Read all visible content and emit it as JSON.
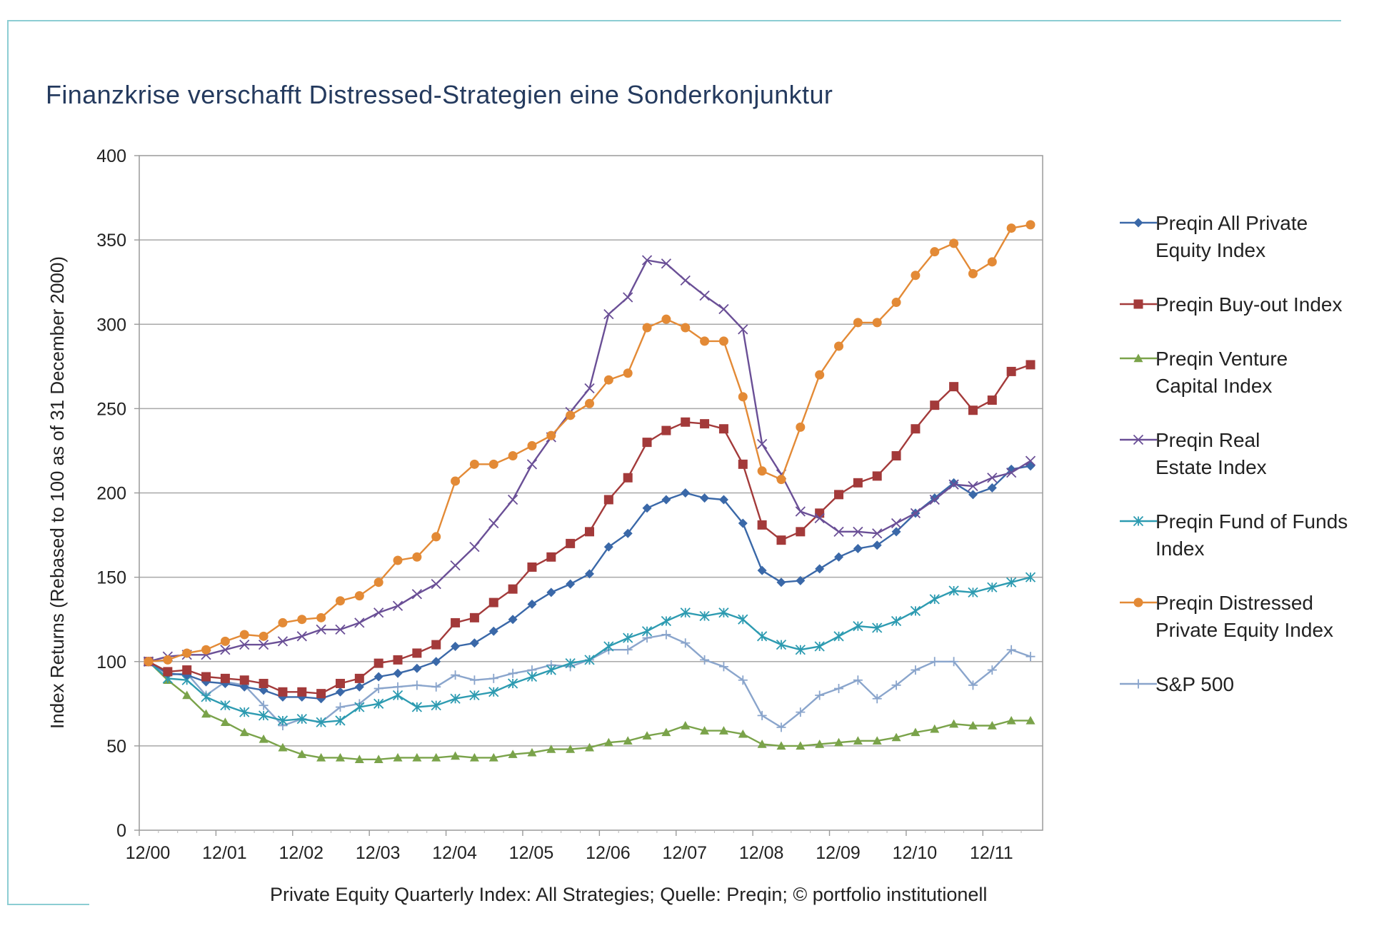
{
  "title": "Finanzkrise verschafft Distressed-Strategien eine Sonderkonjunktur",
  "source": "Private Equity Quarterly Index: All Strategies; Quelle: Preqin; © portfolio institutionell",
  "chart_data": {
    "type": "line",
    "ylabel": "Index Returns (Rebased to 100 as of 31 December 2000)",
    "xlabel": "",
    "ylim": [
      0,
      400
    ],
    "yticks": [
      0,
      50,
      100,
      150,
      200,
      250,
      300,
      350,
      400
    ],
    "grid": true,
    "legend_position": "right",
    "x_tick_labels": [
      "12/00",
      "12/01",
      "12/02",
      "12/03",
      "12/04",
      "12/05",
      "12/06",
      "12/07",
      "12/08",
      "12/09",
      "12/10",
      "12/11"
    ],
    "x": [
      "12/00",
      "03/01",
      "06/01",
      "09/01",
      "12/01",
      "03/02",
      "06/02",
      "09/02",
      "12/02",
      "03/03",
      "06/03",
      "09/03",
      "12/03",
      "03/04",
      "06/04",
      "09/04",
      "12/04",
      "03/05",
      "06/05",
      "09/05",
      "12/05",
      "03/06",
      "06/06",
      "09/06",
      "12/06",
      "03/07",
      "06/07",
      "09/07",
      "12/07",
      "03/08",
      "06/08",
      "09/08",
      "12/08",
      "03/09",
      "06/09",
      "09/09",
      "12/09",
      "03/10",
      "06/10",
      "09/10",
      "12/10",
      "03/11",
      "06/11",
      "09/11",
      "12/11",
      "03/12",
      "06/12"
    ],
    "series": [
      {
        "name": "Preqin All Private Equity Index",
        "color": "#3a68a8",
        "marker": "diamond",
        "values": [
          100,
          93,
          92,
          88,
          87,
          85,
          83,
          79,
          79,
          78,
          82,
          85,
          91,
          93,
          96,
          100,
          109,
          111,
          118,
          125,
          134,
          141,
          146,
          152,
          168,
          176,
          191,
          196,
          200,
          197,
          196,
          182,
          154,
          147,
          148,
          155,
          162,
          167,
          169,
          177,
          188,
          197,
          206,
          199,
          203,
          214,
          216
        ]
      },
      {
        "name": "Preqin Buy-out Index",
        "color": "#a33a3a",
        "marker": "square",
        "values": [
          100,
          94,
          95,
          91,
          90,
          89,
          87,
          82,
          82,
          81,
          87,
          90,
          99,
          101,
          105,
          110,
          123,
          126,
          135,
          143,
          156,
          162,
          170,
          177,
          196,
          209,
          230,
          237,
          242,
          241,
          238,
          217,
          181,
          172,
          177,
          188,
          199,
          206,
          210,
          222,
          238,
          252,
          263,
          249,
          255,
          272,
          276
        ]
      },
      {
        "name": "Preqin Venture Capital Index",
        "color": "#7aa34a",
        "marker": "triangle",
        "values": [
          100,
          89,
          80,
          69,
          64,
          58,
          54,
          49,
          45,
          43,
          43,
          42,
          42,
          43,
          43,
          43,
          44,
          43,
          43,
          45,
          46,
          48,
          48,
          49,
          52,
          53,
          56,
          58,
          62,
          59,
          59,
          57,
          51,
          50,
          50,
          51,
          52,
          53,
          53,
          55,
          58,
          60,
          63,
          62,
          62,
          65,
          65
        ]
      },
      {
        "name": "Preqin Real Estate Index",
        "color": "#6a4f96",
        "marker": "x",
        "values": [
          100,
          103,
          104,
          104,
          107,
          110,
          110,
          112,
          115,
          119,
          119,
          123,
          129,
          133,
          140,
          146,
          157,
          168,
          182,
          196,
          217,
          233,
          248,
          262,
          306,
          316,
          338,
          336,
          326,
          317,
          309,
          297,
          229,
          211,
          189,
          185,
          177,
          177,
          176,
          182,
          188,
          196,
          205,
          204,
          209,
          212,
          219
        ]
      },
      {
        "name": "Preqin Fund of Funds Index",
        "color": "#2d9bb1",
        "marker": "asterisk",
        "values": [
          100,
          90,
          89,
          79,
          74,
          70,
          68,
          65,
          66,
          64,
          65,
          73,
          75,
          80,
          73,
          74,
          78,
          80,
          82,
          87,
          91,
          95,
          99,
          101,
          109,
          114,
          118,
          124,
          129,
          127,
          129,
          125,
          115,
          110,
          107,
          109,
          115,
          121,
          120,
          124,
          130,
          137,
          142,
          141,
          144,
          147,
          150
        ]
      },
      {
        "name": "Preqin Distressed Private Equity Index",
        "color": "#e38a36",
        "marker": "circle",
        "values": [
          100,
          101,
          105,
          107,
          112,
          116,
          115,
          123,
          125,
          126,
          136,
          139,
          147,
          160,
          162,
          174,
          207,
          217,
          217,
          222,
          228,
          234,
          246,
          253,
          267,
          271,
          298,
          303,
          298,
          290,
          290,
          257,
          213,
          208,
          239,
          270,
          287,
          301,
          301,
          313,
          329,
          343,
          348,
          330,
          337,
          357,
          359
        ]
      },
      {
        "name": "S&P 500",
        "color": "#8aa5cc",
        "marker": "plus",
        "values": [
          100,
          92,
          93,
          80,
          88,
          86,
          74,
          62,
          66,
          64,
          73,
          75,
          84,
          85,
          86,
          85,
          92,
          89,
          90,
          93,
          95,
          98,
          97,
          101,
          107,
          107,
          114,
          116,
          111,
          101,
          97,
          89,
          68,
          61,
          70,
          80,
          84,
          89,
          78,
          86,
          95,
          100,
          100,
          86,
          95,
          107,
          103
        ]
      }
    ]
  },
  "legend": [
    {
      "lines": [
        "Preqin All Private",
        "Equity Index"
      ]
    },
    {
      "lines": [
        "Preqin Buy-out Index"
      ]
    },
    {
      "lines": [
        "Preqin Venture",
        "Capital Index"
      ]
    },
    {
      "lines": [
        "Preqin Real",
        "Estate Index"
      ]
    },
    {
      "lines": [
        "Preqin Fund of Funds",
        "Index"
      ]
    },
    {
      "lines": [
        "Preqin Distressed",
        "Private Equity Index"
      ]
    },
    {
      "lines": [
        "S&P 500"
      ]
    }
  ]
}
